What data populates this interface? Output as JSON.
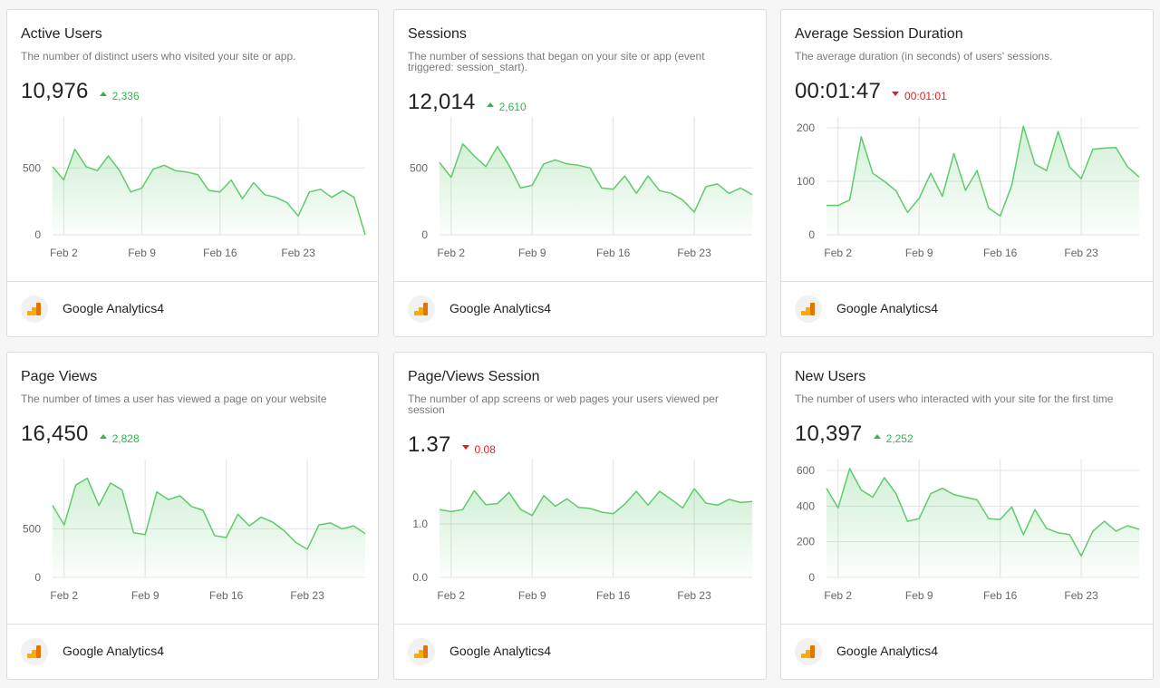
{
  "colors": {
    "line": "#5ecb6b",
    "up": "#2eb84b",
    "down": "#e02020"
  },
  "source_icon": "google-analytics-icon",
  "cards": [
    {
      "title": "Active Users",
      "description": "The number of distinct users who visited your site or app.",
      "value": "10,976",
      "change": "2,336",
      "direction": "up",
      "source": "Google Analytics4",
      "chart_data": {
        "type": "area",
        "x": [
          "Feb 1",
          "Feb 2",
          "Feb 3",
          "Feb 4",
          "Feb 5",
          "Feb 6",
          "Feb 7",
          "Feb 8",
          "Feb 9",
          "Feb 10",
          "Feb 11",
          "Feb 12",
          "Feb 13",
          "Feb 14",
          "Feb 15",
          "Feb 16",
          "Feb 17",
          "Feb 18",
          "Feb 19",
          "Feb 20",
          "Feb 21",
          "Feb 22",
          "Feb 23",
          "Feb 24",
          "Feb 25",
          "Feb 26",
          "Feb 27",
          "Feb 28",
          "Feb 29"
        ],
        "values": [
          510,
          410,
          640,
          510,
          480,
          590,
          480,
          320,
          350,
          490,
          520,
          480,
          470,
          450,
          330,
          320,
          410,
          270,
          390,
          300,
          280,
          240,
          140,
          320,
          340,
          280,
          330,
          280,
          0
        ],
        "tick_labels": [
          "Feb 2",
          "Feb 9",
          "Feb 16",
          "Feb 23"
        ],
        "ytick_labels": [
          "0",
          "500"
        ],
        "ylim": [
          0,
          800
        ]
      }
    },
    {
      "title": "Sessions",
      "description": "The number of sessions that began on your site or app (event triggered: session_start).",
      "value": "12,014",
      "change": "2,610",
      "direction": "up",
      "source": "Google Analytics4",
      "chart_data": {
        "type": "area",
        "x": [
          "Feb 1",
          "Feb 2",
          "Feb 3",
          "Feb 4",
          "Feb 5",
          "Feb 6",
          "Feb 7",
          "Feb 8",
          "Feb 9",
          "Feb 10",
          "Feb 11",
          "Feb 12",
          "Feb 13",
          "Feb 14",
          "Feb 15",
          "Feb 16",
          "Feb 17",
          "Feb 18",
          "Feb 19",
          "Feb 20",
          "Feb 21",
          "Feb 22",
          "Feb 23",
          "Feb 24",
          "Feb 25",
          "Feb 26",
          "Feb 27",
          "Feb 28"
        ],
        "values": [
          540,
          430,
          680,
          590,
          510,
          660,
          520,
          350,
          370,
          530,
          560,
          530,
          520,
          500,
          350,
          340,
          440,
          310,
          440,
          330,
          310,
          260,
          170,
          360,
          380,
          310,
          350,
          300
        ],
        "tick_labels": [
          "Feb 2",
          "Feb 9",
          "Feb 16",
          "Feb 23"
        ],
        "ytick_labels": [
          "0",
          "500"
        ],
        "ylim": [
          0,
          800
        ]
      }
    },
    {
      "title": "Average Session Duration",
      "description": "The average duration (in seconds) of users' sessions.",
      "value": "00:01:47",
      "change": "00:01:01",
      "direction": "down",
      "source": "Google Analytics4",
      "chart_data": {
        "type": "area",
        "x": [
          "Feb 1",
          "Feb 2",
          "Feb 3",
          "Feb 4",
          "Feb 5",
          "Feb 6",
          "Feb 7",
          "Feb 8",
          "Feb 9",
          "Feb 10",
          "Feb 11",
          "Feb 12",
          "Feb 13",
          "Feb 14",
          "Feb 15",
          "Feb 16",
          "Feb 17",
          "Feb 18",
          "Feb 19",
          "Feb 20",
          "Feb 21",
          "Feb 22",
          "Feb 23",
          "Feb 24",
          "Feb 25",
          "Feb 26",
          "Feb 27",
          "Feb 28"
        ],
        "values": [
          55,
          55,
          65,
          183,
          115,
          100,
          82,
          42,
          68,
          115,
          72,
          152,
          83,
          120,
          50,
          35,
          92,
          203,
          132,
          120,
          193,
          127,
          105,
          160,
          162,
          163,
          127,
          108
        ],
        "tick_labels": [
          "Feb 2",
          "Feb 9",
          "Feb 16",
          "Feb 23"
        ],
        "ytick_labels": [
          "0",
          "100",
          "200"
        ],
        "ylim": [
          0,
          200
        ]
      }
    },
    {
      "title": "Page Views",
      "description": "The number of times a user has viewed a page on your website",
      "value": "16,450",
      "change": "2,828",
      "direction": "up",
      "source": "Google Analytics4",
      "chart_data": {
        "type": "area",
        "x": [
          "Feb 1",
          "Feb 2",
          "Feb 3",
          "Feb 4",
          "Feb 5",
          "Feb 6",
          "Feb 7",
          "Feb 8",
          "Feb 9",
          "Feb 10",
          "Feb 11",
          "Feb 12",
          "Feb 13",
          "Feb 14",
          "Feb 15",
          "Feb 16",
          "Feb 17",
          "Feb 18",
          "Feb 19",
          "Feb 20",
          "Feb 21",
          "Feb 22",
          "Feb 23",
          "Feb 24",
          "Feb 25",
          "Feb 26",
          "Feb 27",
          "Feb 28"
        ],
        "values": [
          740,
          540,
          950,
          1020,
          740,
          970,
          900,
          460,
          440,
          880,
          800,
          840,
          730,
          690,
          430,
          410,
          650,
          530,
          620,
          570,
          480,
          360,
          290,
          540,
          560,
          500,
          530,
          450
        ],
        "tick_labels": [
          "Feb 2",
          "Feb 9",
          "Feb 16",
          "Feb 23"
        ],
        "ytick_labels": [
          "0",
          "500"
        ],
        "ylim": [
          0,
          1100
        ]
      }
    },
    {
      "title": "Page/Views Session",
      "description": "The number of app screens or web pages your users viewed per session",
      "value": "1.37",
      "change": "0.08",
      "direction": "down",
      "source": "Google Analytics4",
      "chart_data": {
        "type": "area",
        "x": [
          "Feb 1",
          "Feb 2",
          "Feb 3",
          "Feb 4",
          "Feb 5",
          "Feb 6",
          "Feb 7",
          "Feb 8",
          "Feb 9",
          "Feb 10",
          "Feb 11",
          "Feb 12",
          "Feb 13",
          "Feb 14",
          "Feb 15",
          "Feb 16",
          "Feb 17",
          "Feb 18",
          "Feb 19",
          "Feb 20",
          "Feb 21",
          "Feb 22",
          "Feb 23",
          "Feb 24",
          "Feb 25",
          "Feb 26",
          "Feb 27",
          "Feb 28"
        ],
        "values": [
          1.27,
          1.23,
          1.27,
          1.62,
          1.36,
          1.38,
          1.59,
          1.27,
          1.16,
          1.53,
          1.33,
          1.47,
          1.31,
          1.29,
          1.22,
          1.19,
          1.37,
          1.61,
          1.35,
          1.61,
          1.46,
          1.3,
          1.66,
          1.39,
          1.35,
          1.46,
          1.4,
          1.42
        ],
        "tick_labels": [
          "Feb 2",
          "Feb 9",
          "Feb 16",
          "Feb 23"
        ],
        "ytick_labels": [
          "0.0",
          "1.0"
        ],
        "ylim": [
          0,
          2.0
        ]
      }
    },
    {
      "title": "New Users",
      "description": "The number of users who interacted with your site for the first time",
      "value": "10,397",
      "change": "2,252",
      "direction": "up",
      "source": "Google Analytics4",
      "chart_data": {
        "type": "area",
        "x": [
          "Feb 1",
          "Feb 2",
          "Feb 3",
          "Feb 4",
          "Feb 5",
          "Feb 6",
          "Feb 7",
          "Feb 8",
          "Feb 9",
          "Feb 10",
          "Feb 11",
          "Feb 12",
          "Feb 13",
          "Feb 14",
          "Feb 15",
          "Feb 16",
          "Feb 17",
          "Feb 18",
          "Feb 19",
          "Feb 20",
          "Feb 21",
          "Feb 22",
          "Feb 23",
          "Feb 24",
          "Feb 25",
          "Feb 26",
          "Feb 27",
          "Feb 28"
        ],
        "values": [
          500,
          390,
          610,
          490,
          450,
          560,
          470,
          315,
          330,
          470,
          500,
          465,
          450,
          435,
          330,
          325,
          395,
          240,
          380,
          275,
          250,
          240,
          120,
          260,
          315,
          260,
          290,
          270
        ],
        "tick_labels": [
          "Feb 2",
          "Feb 9",
          "Feb 16",
          "Feb 23"
        ],
        "ytick_labels": [
          "0",
          "200",
          "400",
          "600"
        ],
        "ylim": [
          0,
          600
        ]
      }
    }
  ]
}
